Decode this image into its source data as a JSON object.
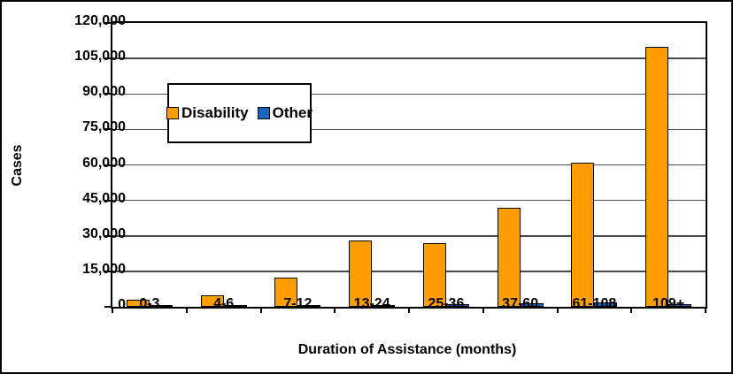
{
  "chart_data": {
    "type": "bar",
    "title": "",
    "xlabel": "Duration of Assistance (months)",
    "ylabel": "Cases",
    "categories": [
      "0-3",
      "4-6",
      "7-12",
      "13-24",
      "25-36",
      "37-60",
      "61-108",
      "109+"
    ],
    "series": [
      {
        "name": "Disability",
        "color": "#FF9E00",
        "values": [
          3000,
          5000,
          12500,
          28000,
          27000,
          42000,
          61000,
          110000
        ]
      },
      {
        "name": "Other",
        "color": "#1565C0",
        "values": [
          300,
          450,
          700,
          900,
          1000,
          1400,
          1800,
          1200
        ]
      }
    ],
    "ylim": [
      0,
      120000
    ],
    "ytick_step": 15000,
    "ytick_labels": [
      "0",
      "15,000",
      "30,000",
      "45,000",
      "60,000",
      "75,000",
      "90,000",
      "105,000",
      "120,000"
    ],
    "grid": true,
    "legend_position": "upper-left-inside",
    "colors": {
      "axis": "#000000",
      "gridline": "#4a4a4a",
      "background": "#ffffff"
    }
  }
}
